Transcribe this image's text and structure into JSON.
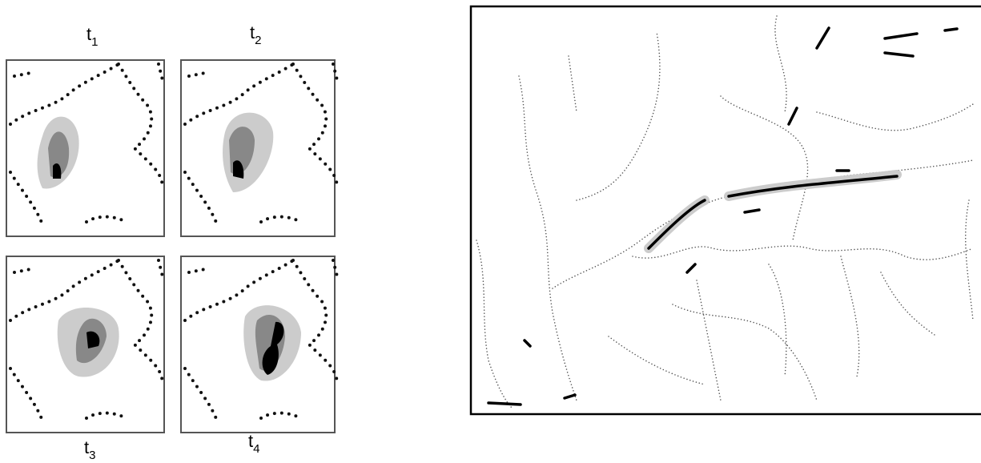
{
  "panels": [
    {
      "label": "t",
      "subscript": "1"
    },
    {
      "label": "t",
      "subscript": "2"
    },
    {
      "label": "t",
      "subscript": "3"
    },
    {
      "label": "t",
      "subscript": "4"
    }
  ]
}
